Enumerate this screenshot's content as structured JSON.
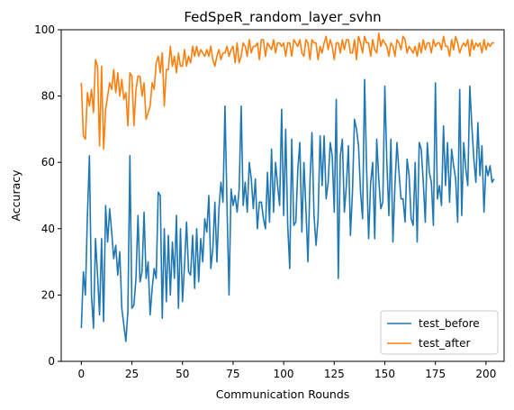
{
  "chart_data": {
    "type": "line",
    "title": "FedSpeR_random_layer_svhn",
    "xlabel": "Communication Rounds",
    "ylabel": "Accuracy",
    "xlim": [
      -9.95,
      208.95
    ],
    "ylim": [
      0,
      100
    ],
    "xticks": [
      0,
      25,
      50,
      75,
      100,
      125,
      150,
      175,
      200
    ],
    "yticks": [
      0,
      20,
      40,
      60,
      80,
      100
    ],
    "legend_position": "lower-right",
    "series": [
      {
        "name": "test_before",
        "color": "#1f77b4",
        "y": [
          10,
          27,
          20,
          44,
          62,
          20,
          10,
          37,
          26,
          14,
          37,
          12,
          47,
          36,
          46,
          39,
          31,
          35,
          26,
          33,
          16,
          11,
          6,
          15,
          62,
          16,
          17,
          25,
          44,
          24,
          27,
          45,
          25,
          30,
          14,
          22,
          28,
          25,
          51,
          50,
          13,
          40,
          18,
          38,
          20,
          36,
          25,
          44,
          16,
          40,
          18,
          29,
          42,
          27,
          26,
          38,
          22,
          40,
          24,
          37,
          30,
          43,
          39,
          50,
          28,
          34,
          48,
          30,
          46,
          54,
          48,
          77,
          47,
          20,
          52,
          47,
          50,
          45,
          52,
          77,
          47,
          54,
          45,
          60,
          55,
          46,
          55,
          40,
          48,
          48,
          43,
          40,
          57,
          42,
          64,
          45,
          60,
          53,
          47,
          76,
          44,
          70,
          41,
          28,
          67,
          41,
          42,
          58,
          66,
          39,
          60,
          46,
          30,
          54,
          69,
          44,
          35,
          43,
          68,
          53,
          68,
          49,
          54,
          66,
          62,
          45,
          79,
          25,
          62,
          67,
          45,
          53,
          65,
          38,
          51,
          73,
          70,
          65,
          51,
          43,
          85,
          58,
          37,
          54,
          60,
          37,
          67,
          55,
          46,
          48,
          83,
          60,
          44,
          67,
          36,
          53,
          66,
          57,
          49,
          49,
          42,
          61,
          56,
          43,
          41,
          60,
          36,
          66,
          64,
          54,
          42,
          66,
          57,
          54,
          41,
          84,
          49,
          53,
          47,
          71,
          53,
          66,
          48,
          64,
          59,
          55,
          42,
          82,
          44,
          66,
          58,
          53,
          83,
          71,
          61,
          54,
          72,
          56,
          65,
          45,
          59,
          56,
          59,
          54,
          55
        ]
      },
      {
        "name": "test_after",
        "color": "#ff7f0e",
        "y": [
          84,
          68,
          67,
          81,
          77,
          82,
          75,
          91,
          89,
          65,
          89,
          64,
          76,
          80,
          84,
          82,
          88,
          81,
          87,
          80,
          85,
          79,
          81,
          71,
          87,
          86,
          71,
          82,
          86,
          86,
          80,
          84,
          73,
          75,
          77,
          84,
          82,
          90,
          92,
          87,
          93,
          77,
          88,
          88,
          95,
          89,
          92,
          87,
          93,
          89,
          89,
          94,
          89,
          92,
          90,
          95,
          92,
          95,
          92,
          94,
          93,
          92,
          94,
          92,
          95,
          91,
          89,
          92,
          94,
          91,
          93,
          93,
          95,
          92,
          94,
          95,
          90,
          96,
          90,
          92,
          96,
          95,
          92,
          97,
          93,
          95,
          95,
          96,
          91,
          97,
          97,
          92,
          96,
          95,
          94,
          97,
          93,
          96,
          96,
          95,
          96,
          92,
          96,
          96,
          92,
          97,
          96,
          95,
          97,
          93,
          92,
          97,
          96,
          91,
          97,
          96,
          96,
          91,
          95,
          93,
          96,
          98,
          94,
          97,
          95,
          91,
          96,
          96,
          93,
          97,
          94,
          97,
          97,
          93,
          93,
          97,
          91,
          98,
          96,
          93,
          98,
          96,
          96,
          92,
          97,
          94,
          93,
          99,
          95,
          97,
          96,
          95,
          92,
          96,
          95,
          92,
          97,
          96,
          94,
          98,
          97,
          93,
          95,
          94,
          93,
          95,
          92,
          96,
          93,
          97,
          94,
          96,
          96,
          93,
          97,
          95,
          96,
          96,
          94,
          98,
          95,
          95,
          92,
          97,
          94,
          98,
          96,
          93,
          95,
          96,
          95,
          97,
          92,
          97,
          94,
          96,
          95,
          96,
          93,
          97,
          94,
          96,
          95,
          96,
          96
        ]
      }
    ]
  }
}
